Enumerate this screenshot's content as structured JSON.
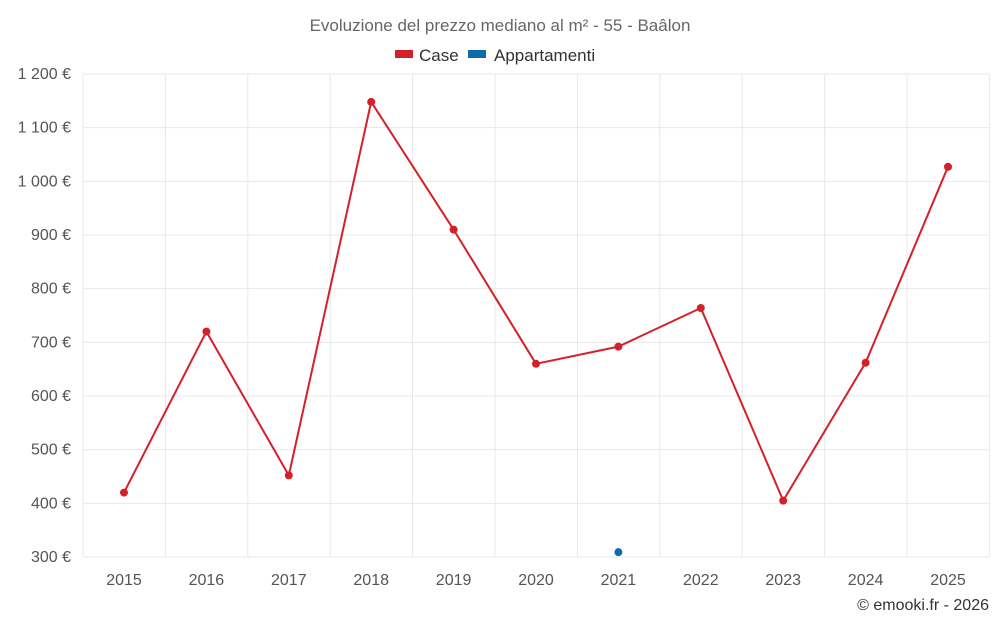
{
  "chart_data": {
    "type": "line",
    "title": "Evoluzione del prezzo mediano al m² - 55 - Baâlon",
    "categories": [
      "2015",
      "2016",
      "2017",
      "2018",
      "2019",
      "2020",
      "2021",
      "2022",
      "2023",
      "2024",
      "2025"
    ],
    "series": [
      {
        "name": "Case",
        "color": "#d42027",
        "values": [
          420,
          720,
          452,
          1148,
          910,
          660,
          692,
          764,
          405,
          662,
          1027
        ]
      },
      {
        "name": "Appartamenti",
        "color": "#0f6aa8",
        "values": [
          null,
          null,
          null,
          null,
          null,
          null,
          309,
          null,
          null,
          null,
          null
        ]
      }
    ],
    "ylim": [
      300,
      1200
    ],
    "yticks": [
      300,
      400,
      500,
      600,
      700,
      800,
      900,
      1000,
      1100,
      1200
    ],
    "ytick_labels": [
      "300 €",
      "400 €",
      "500 €",
      "600 €",
      "700 €",
      "800 €",
      "900 €",
      "1 000 €",
      "1 100 €",
      "1 200 €"
    ],
    "xlabel": "",
    "ylabel": "",
    "legend_position": "top-center",
    "grid": true
  },
  "credit": "© emooki.fr - 2026"
}
